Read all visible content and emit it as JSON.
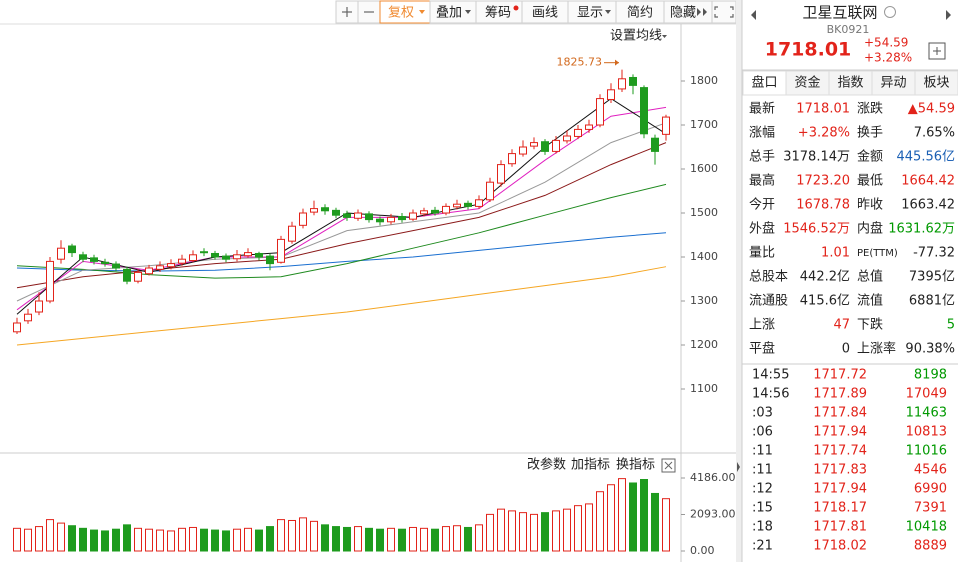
{
  "toolbar": [
    "复权",
    "叠加",
    "筹码",
    "画线",
    "显示",
    "简约",
    "隐藏"
  ],
  "quote": {
    "name": "卫星互联网",
    "code": "BK0921",
    "price": "1718.01",
    "change": "+54.59",
    "change_pct": "+3.28%"
  },
  "tabs": [
    "盘口",
    "资金",
    "指数",
    "异动",
    "板块"
  ],
  "stats": [
    [
      {
        "label": "最新",
        "value": "1718.01",
        "color": "#e2231a"
      },
      {
        "label": "涨跌",
        "value": "▲54.59",
        "color": "#e2231a"
      }
    ],
    [
      {
        "label": "涨幅",
        "value": "+3.28%",
        "color": "#e2231a"
      },
      {
        "label": "换手",
        "value": "7.65%",
        "color": "#222222"
      }
    ],
    [
      {
        "label": "总手",
        "value": "3178.14万",
        "color": "#222222"
      },
      {
        "label": "金额",
        "value": "445.56亿",
        "color": "#1a5fb4"
      }
    ],
    [
      {
        "label": "最高",
        "value": "1723.20",
        "color": "#e2231a"
      },
      {
        "label": "最低",
        "value": "1664.42",
        "color": "#e2231a"
      }
    ],
    [
      {
        "label": "今开",
        "value": "1678.78",
        "color": "#e2231a"
      },
      {
        "label": "昨收",
        "value": "1663.42",
        "color": "#222222"
      }
    ],
    [
      {
        "label": "外盘",
        "value": "1546.52万",
        "color": "#e2231a"
      },
      {
        "label": "内盘",
        "value": "1631.62万",
        "color": "#009900"
      }
    ],
    [
      {
        "label": "量比",
        "value": "1.01",
        "color": "#e2231a"
      },
      {
        "label": "PE(TTM)",
        "value": "-77.32",
        "color": "#222222"
      }
    ],
    [
      {
        "label": "总股本",
        "value": "442.2亿",
        "color": "#222222"
      },
      {
        "label": "总值",
        "value": "7395亿",
        "color": "#222222"
      }
    ],
    [
      {
        "label": "流通股",
        "value": "415.6亿",
        "color": "#222222"
      },
      {
        "label": "流值",
        "value": "6881亿",
        "color": "#222222"
      }
    ],
    [
      {
        "label": "上涨",
        "value": "47",
        "color": "#e2231a"
      },
      {
        "label": "下跌",
        "value": "5",
        "color": "#009900"
      }
    ],
    [
      {
        "label": "平盘",
        "value": "0",
        "color": "#222222"
      },
      {
        "label": "上涨率",
        "value": "90.38%",
        "color": "#222222"
      }
    ]
  ],
  "trades": [
    {
      "time": "14:55",
      "price": "1717.72",
      "volume": "8198",
      "color": "#009900"
    },
    {
      "time": "14:56",
      "price": "1717.89",
      "volume": "17049",
      "color": "#e2231a"
    },
    {
      "time": ":03",
      "price": "1717.84",
      "volume": "11463",
      "color": "#009900"
    },
    {
      "time": ":06",
      "price": "1717.94",
      "volume": "10813",
      "color": "#e2231a"
    },
    {
      "time": ":11",
      "price": "1717.74",
      "volume": "11016",
      "color": "#009900"
    },
    {
      "time": ":11",
      "price": "1717.83",
      "volume": "4546",
      "color": "#e2231a"
    },
    {
      "time": ":12",
      "price": "1717.94",
      "volume": "6990",
      "color": "#e2231a"
    },
    {
      "time": ":15",
      "price": "1718.17",
      "volume": "7391",
      "color": "#e2231a"
    },
    {
      "time": ":18",
      "price": "1717.81",
      "volume": "10418",
      "color": "#009900"
    },
    {
      "time": ":21",
      "price": "1718.02",
      "volume": "8889",
      "color": "#e2231a"
    }
  ],
  "chart_data": {
    "type": "candlestick",
    "setting_label": "设置均线",
    "indicator_buttons": [
      "改参数",
      "加指标",
      "换指标"
    ],
    "ylim": [
      975,
      1925
    ],
    "yticks": [
      1100,
      1200,
      1300,
      1400,
      1500,
      1600,
      1700,
      1800
    ],
    "up_color": "#e2231a",
    "down_color": "#1e9b1e",
    "high_annotation": 1825.73,
    "ohlc": [
      [
        1230,
        1262,
        1225,
        1250
      ],
      [
        1255,
        1282,
        1248,
        1270
      ],
      [
        1275,
        1320,
        1268,
        1300
      ],
      [
        1300,
        1400,
        1295,
        1390
      ],
      [
        1395,
        1438,
        1385,
        1420
      ],
      [
        1425,
        1430,
        1400,
        1410
      ],
      [
        1405,
        1412,
        1388,
        1395
      ],
      [
        1398,
        1405,
        1383,
        1390
      ],
      [
        1388,
        1396,
        1378,
        1385
      ],
      [
        1384,
        1390,
        1368,
        1375
      ],
      [
        1372,
        1378,
        1338,
        1345
      ],
      [
        1345,
        1372,
        1340,
        1365
      ],
      [
        1362,
        1382,
        1358,
        1375
      ],
      [
        1372,
        1390,
        1366,
        1380
      ],
      [
        1378,
        1395,
        1372,
        1385
      ],
      [
        1386,
        1405,
        1380,
        1395
      ],
      [
        1392,
        1415,
        1388,
        1405
      ],
      [
        1412,
        1420,
        1402,
        1410
      ],
      [
        1408,
        1414,
        1394,
        1400
      ],
      [
        1402,
        1408,
        1388,
        1395
      ],
      [
        1396,
        1416,
        1390,
        1405
      ],
      [
        1403,
        1420,
        1398,
        1410
      ],
      [
        1408,
        1412,
        1392,
        1400
      ],
      [
        1402,
        1408,
        1370,
        1385
      ],
      [
        1388,
        1448,
        1385,
        1440
      ],
      [
        1436,
        1480,
        1430,
        1470
      ],
      [
        1472,
        1510,
        1465,
        1500
      ],
      [
        1502,
        1528,
        1495,
        1510
      ],
      [
        1512,
        1520,
        1496,
        1505
      ],
      [
        1506,
        1512,
        1488,
        1495
      ],
      [
        1498,
        1505,
        1482,
        1490
      ],
      [
        1488,
        1508,
        1482,
        1500
      ],
      [
        1498,
        1504,
        1478,
        1485
      ],
      [
        1486,
        1492,
        1472,
        1480
      ],
      [
        1480,
        1498,
        1474,
        1490
      ],
      [
        1492,
        1500,
        1478,
        1485
      ],
      [
        1486,
        1508,
        1482,
        1500
      ],
      [
        1498,
        1512,
        1492,
        1505
      ],
      [
        1506,
        1514,
        1494,
        1500
      ],
      [
        1500,
        1522,
        1495,
        1515
      ],
      [
        1514,
        1530,
        1508,
        1520
      ],
      [
        1522,
        1528,
        1508,
        1515
      ],
      [
        1515,
        1540,
        1510,
        1530
      ],
      [
        1530,
        1580,
        1525,
        1570
      ],
      [
        1568,
        1620,
        1560,
        1610
      ],
      [
        1612,
        1645,
        1605,
        1635
      ],
      [
        1634,
        1665,
        1628,
        1650
      ],
      [
        1652,
        1672,
        1645,
        1660
      ],
      [
        1662,
        1668,
        1632,
        1640
      ],
      [
        1640,
        1675,
        1635,
        1665
      ],
      [
        1664,
        1688,
        1658,
        1675
      ],
      [
        1674,
        1700,
        1668,
        1690
      ],
      [
        1690,
        1712,
        1682,
        1700
      ],
      [
        1700,
        1770,
        1695,
        1760
      ],
      [
        1758,
        1795,
        1750,
        1780
      ],
      [
        1782,
        1825.73,
        1775,
        1805
      ],
      [
        1808,
        1815,
        1770,
        1790
      ],
      [
        1785,
        1790,
        1670,
        1680
      ],
      [
        1670,
        1678,
        1610,
        1640
      ],
      [
        1678.78,
        1723.2,
        1664.42,
        1718.01
      ]
    ],
    "ma": {
      "x": [
        0,
        6,
        12,
        18,
        24,
        30,
        36,
        42,
        48,
        54,
        59
      ],
      "series": [
        {
          "color": "#f5a623",
          "values": [
            1200,
            1215,
            1230,
            1245,
            1260,
            1275,
            1295,
            1315,
            1335,
            1355,
            1378
          ]
        },
        {
          "color": "#1a6fd0",
          "values": [
            1375,
            1370,
            1368,
            1370,
            1378,
            1390,
            1400,
            1415,
            1430,
            1445,
            1455
          ]
        },
        {
          "color": "#1f8a1f",
          "values": [
            1380,
            1372,
            1360,
            1352,
            1355,
            1385,
            1420,
            1455,
            1495,
            1535,
            1565
          ]
        },
        {
          "color": "#8b1a1a",
          "values": [
            1330,
            1355,
            1370,
            1385,
            1395,
            1430,
            1460,
            1490,
            1540,
            1610,
            1660
          ]
        },
        {
          "color": "#999999",
          "values": [
            1300,
            1370,
            1380,
            1395,
            1400,
            1460,
            1480,
            1500,
            1570,
            1660,
            1705
          ]
        },
        {
          "color": "#e020c0",
          "values": [
            1280,
            1390,
            1370,
            1400,
            1400,
            1490,
            1490,
            1510,
            1620,
            1720,
            1740
          ]
        },
        {
          "color": "#111111",
          "values": [
            1270,
            1400,
            1365,
            1400,
            1410,
            1500,
            1490,
            1520,
            1650,
            1760,
            1680
          ]
        }
      ]
    },
    "volume": {
      "ylim": [
        0,
        4358
      ],
      "yticks": [
        {
          "value": 4186,
          "label": "4186.00"
        },
        {
          "value": 2093,
          "label": "2093.00"
        },
        {
          "value": 0,
          "label": "0.00"
        }
      ],
      "values": [
        1300,
        1250,
        1400,
        1800,
        1600,
        1450,
        1300,
        1200,
        1150,
        1250,
        1500,
        1300,
        1250,
        1200,
        1150,
        1300,
        1350,
        1250,
        1200,
        1150,
        1250,
        1300,
        1200,
        1400,
        1800,
        1750,
        1900,
        1700,
        1500,
        1400,
        1350,
        1400,
        1300,
        1250,
        1300,
        1250,
        1350,
        1300,
        1250,
        1400,
        1450,
        1350,
        1500,
        2100,
        2400,
        2300,
        2200,
        2100,
        2200,
        2300,
        2400,
        2600,
        2700,
        3400,
        3800,
        4150,
        3900,
        4100,
        3300,
        3000
      ]
    }
  }
}
